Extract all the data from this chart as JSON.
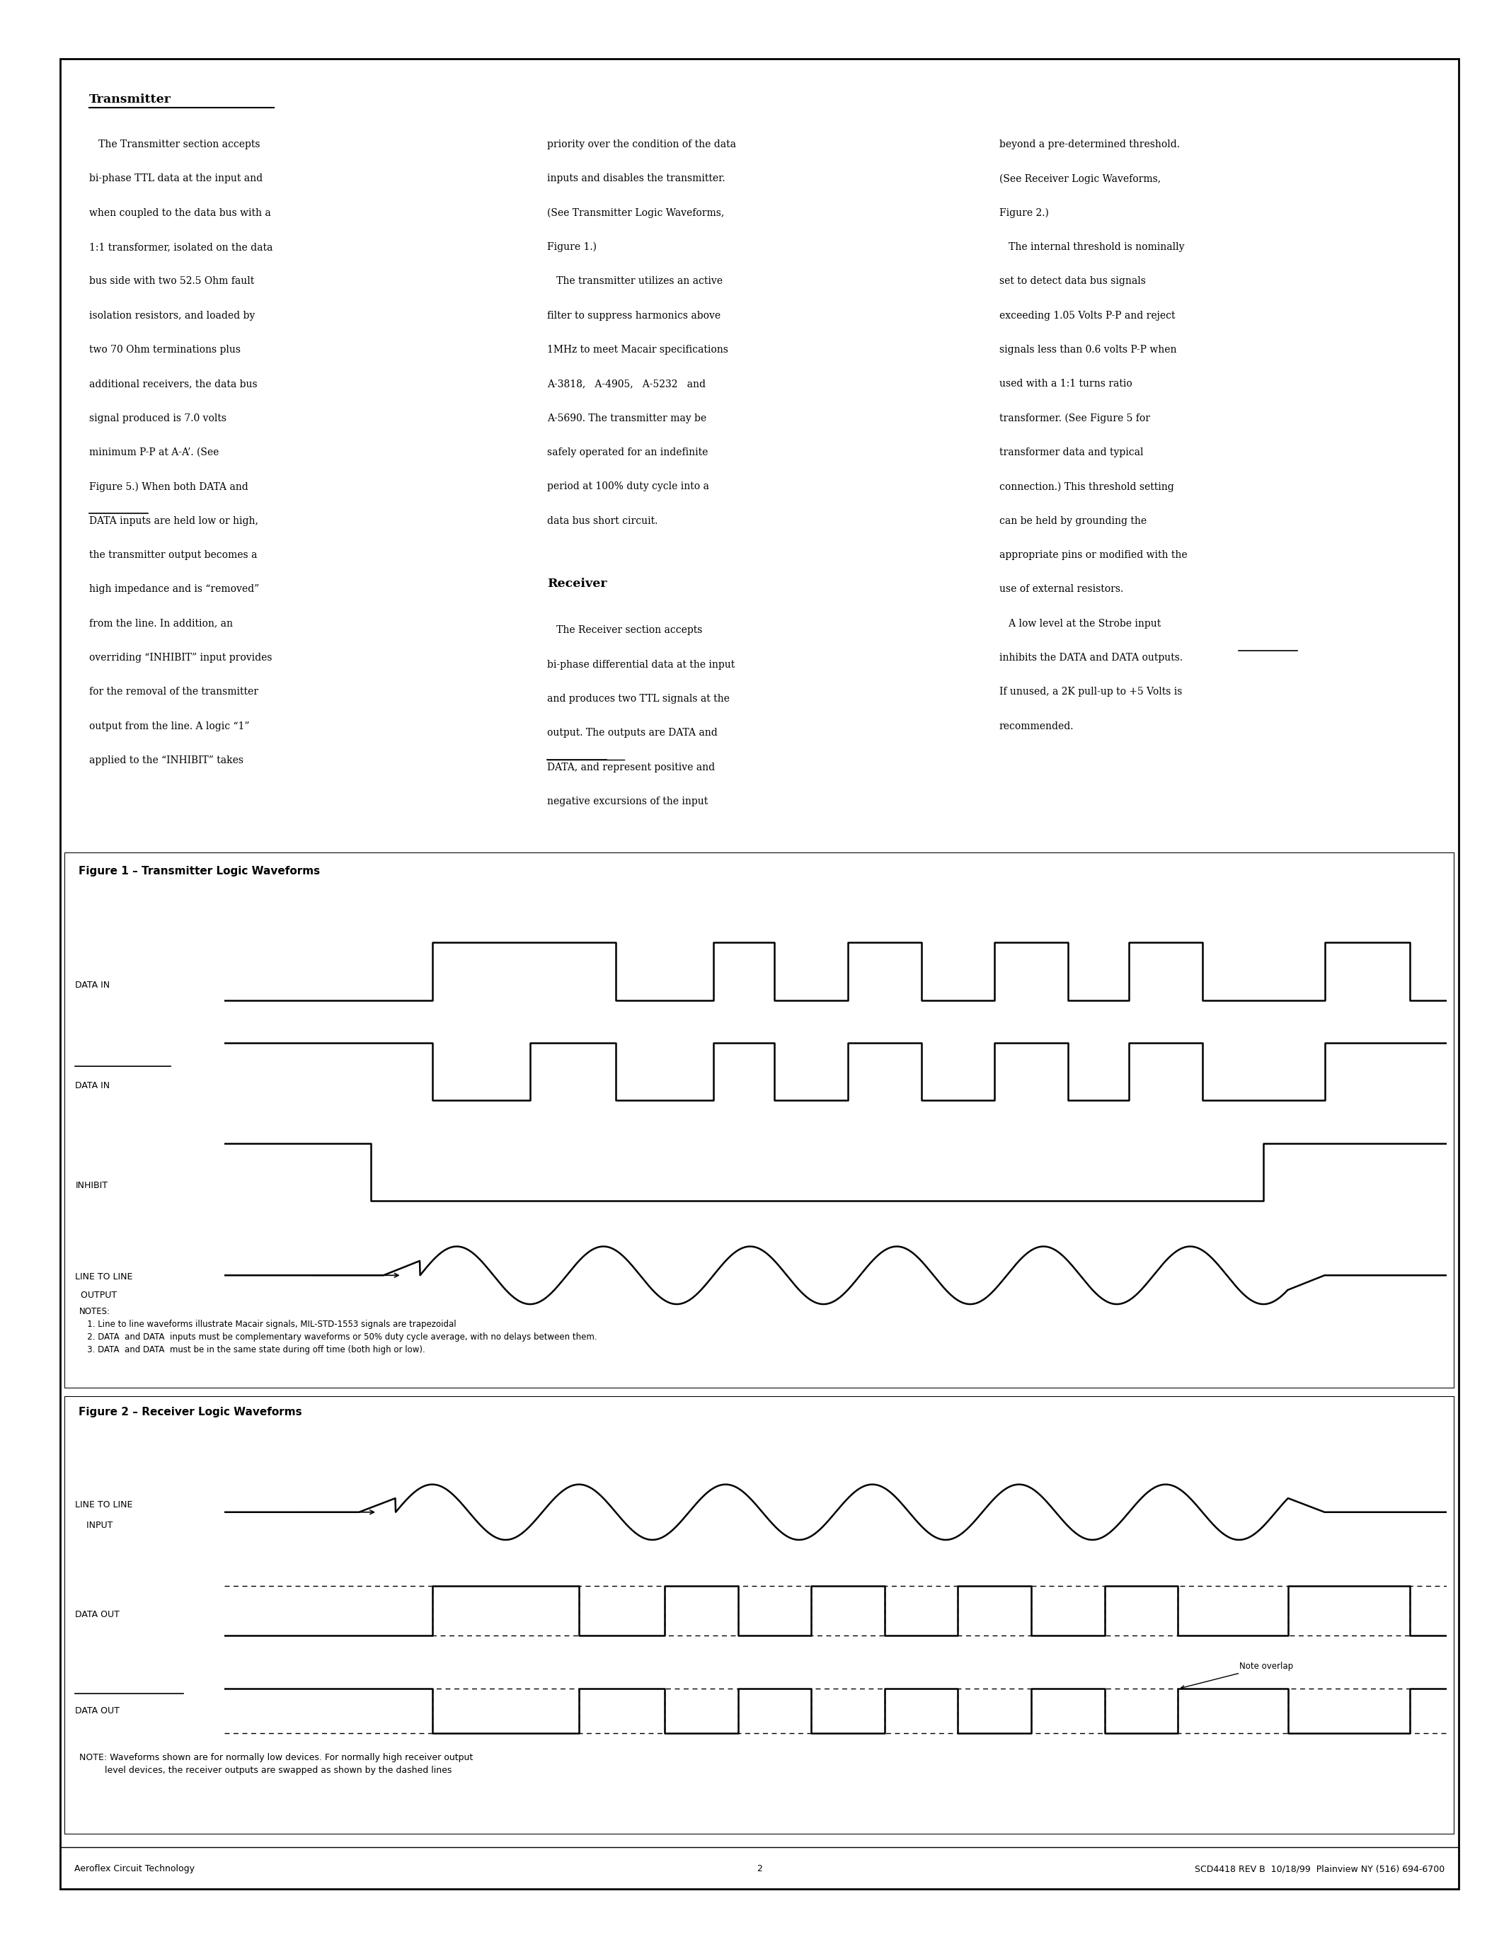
{
  "page_bg": "#ffffff",
  "border_color": "#000000",
  "text_color": "#000000",
  "title_transmitter": "Transmitter",
  "title_receiver": "Receiver",
  "fig1_title": "Figure 1 – Transmitter Logic Waveforms",
  "fig2_title": "Figure 2 – Receiver Logic Waveforms",
  "footer_left": "Aeroflex Circuit Technology",
  "footer_center": "2",
  "footer_right": "SCD4418 REV B  10/18/99  Plainview NY (516) 694-6700",
  "col1_body": "   The Transmitter section accepts bi-phase TTL data at the input and\nwhen coupled to the data bus with a 1:1 transformer, isolated on the data\nbus side with two 52.5 Ohm fault isolation resistors, and loaded by\ntwo 70 Ohm terminations plus additional receivers, the data bus\nsignal produced is 7.0 volts minimum P-P at A-A’. (See\nFigure 5.) When both DATA and\nDATA inputs are held low or high,\nthe transmitter output becomes a high impedance and is “removed”\nfrom the line. In addition, an overriding “INHIBIT” input provides\nfor the removal of the transmitter output from the line. A logic “1”\napplied to the “INHIBIT” takes",
  "col2_body": "priority over the condition of the data\ninputs and disables the transmitter.\n(See Transmitter Logic Waveforms,\nFigure 1.)\n   The transmitter utilizes an active\nfilter to suppress harmonics above\n1MHz to meet Macair specifications\nA-3818,   A-4905,   A-5232   and\nA-5690. The transmitter may be\nsafely operated for an indefinite\nperiod at 100% duty cycle into a\ndata bus short circuit.",
  "col2_receiver_body": "   The Receiver section accepts\nbi-phase differential data at the input\nand produces two TTL signals at the\noutput. The outputs are DATA and\nDATA, and represent positive and\nnegative excursions of the input",
  "col3_body": "beyond a pre-determined threshold.\n(See Receiver Logic Waveforms,\nFigure 2.)\n   The internal threshold is nominally\nset to detect data bus signals\nexceeding 1.05 Volts P-P and reject\nsignals less than 0.6 volts P-P when\nused with a 1:1 turns ratio\ntransformer. (See Figure 5 for\ntransformer data and typical\nconnection.) This threshold setting\ncan be held by grounding the\nappropriate pins or modified with the\nuse of external resistors.\n   A low level at the Strobe input\ninhibits the DATA and DATA outputs.\nIf unused, a 2K pull-up to +5 Volts is\nrecommended.",
  "notes_fig1_line1": "NOTES:",
  "notes_fig1_line2": "   1. Line to line waveforms illustrate Macair signals, MIL-STD-1553 signals are trapezoidal",
  "notes_fig1_line3": "   2. DATA  and DATA  inputs must be complementary waveforms or 50% duty cycle average, with no delays between them.",
  "notes_fig1_line4": "   3. DATA  and DATA  must be in the same state during off time (both high or low).",
  "note_fig2": "NOTE: Waveforms shown are for normally low devices. For normally high receiver output\n         level devices, the receiver outputs are swapped as shown by the dashed lines"
}
